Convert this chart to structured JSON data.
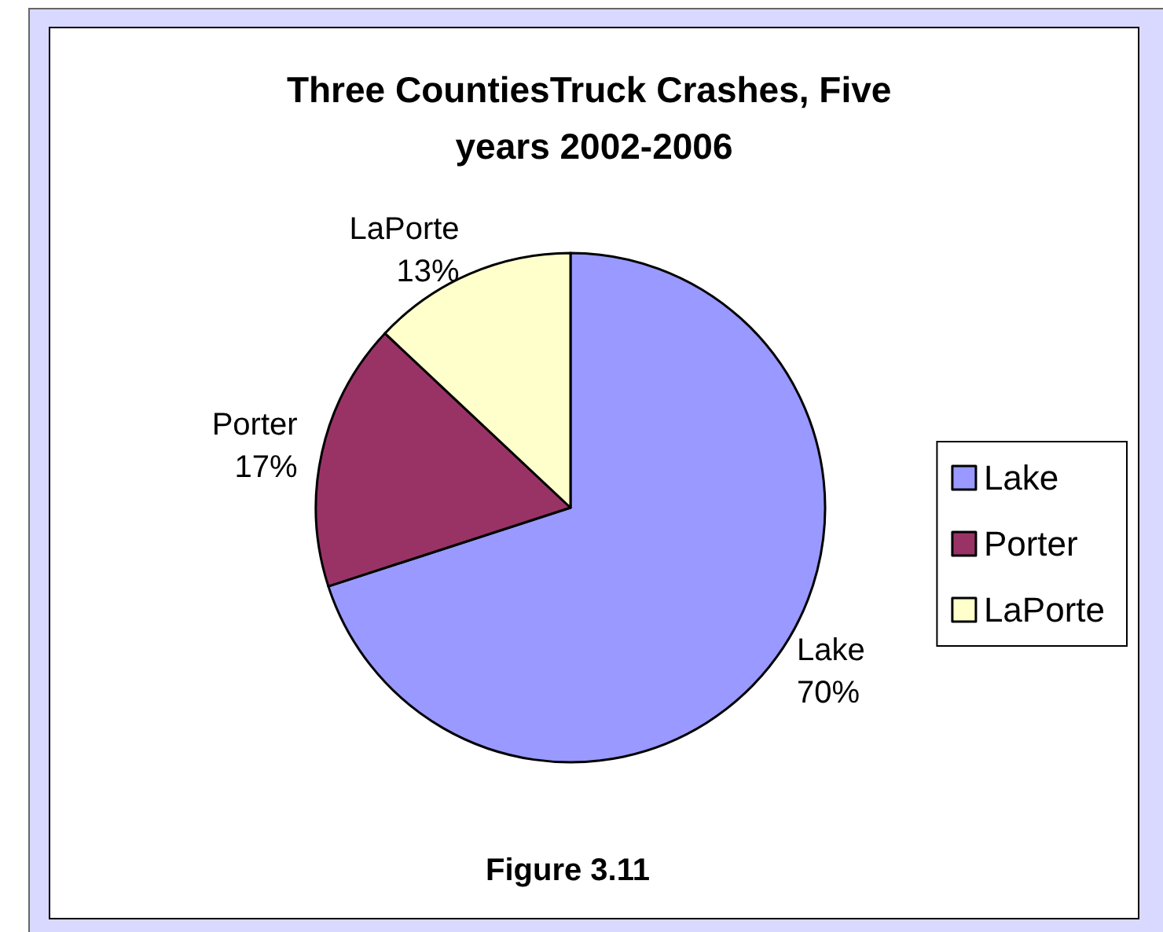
{
  "chart_data": {
    "type": "pie",
    "title": "Three CountiesTruck Crashes, Five years 2002-2006",
    "categories": [
      "Lake",
      "Porter",
      "LaPorte"
    ],
    "values": [
      70,
      17,
      13
    ],
    "colors": [
      "#9999ff",
      "#993366",
      "#ffffcc"
    ],
    "value_labels": [
      "70%",
      "17%",
      "13%"
    ],
    "legend": "right",
    "annotations": [
      "Figure 3.11"
    ]
  }
}
